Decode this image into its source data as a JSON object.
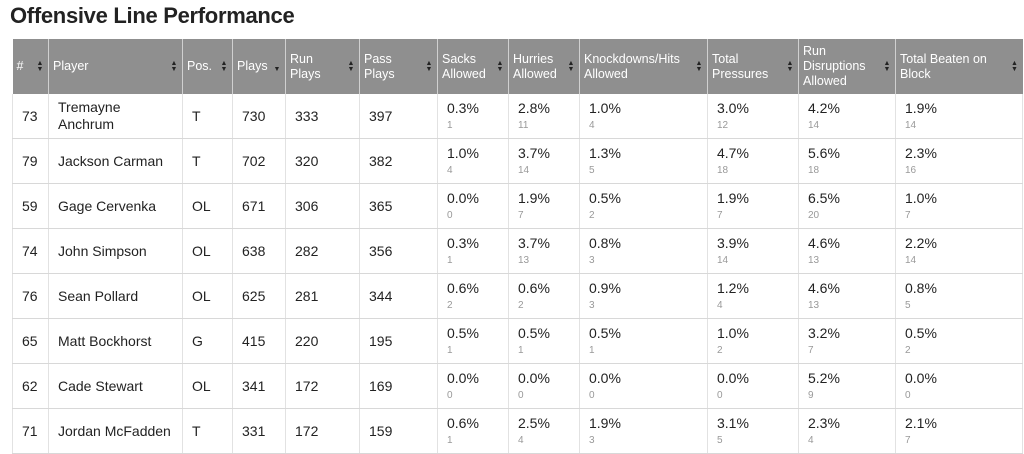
{
  "title": "Offensive Line Performance",
  "columns": [
    {
      "key": "num",
      "label": "#"
    },
    {
      "key": "player",
      "label": "Player"
    },
    {
      "key": "pos",
      "label": "Pos."
    },
    {
      "key": "plays",
      "label": "Plays"
    },
    {
      "key": "run_plays",
      "label": "Run Plays"
    },
    {
      "key": "pass_plays",
      "label": "Pass Plays"
    },
    {
      "key": "sacks",
      "label": "Sacks Allowed"
    },
    {
      "key": "hurries",
      "label": "Hurries Allowed"
    },
    {
      "key": "knockdowns",
      "label": "Knockdowns/Hits Allowed"
    },
    {
      "key": "pressures",
      "label": "Total Pressures"
    },
    {
      "key": "run_disruptions",
      "label": "Run Disruptions Allowed"
    },
    {
      "key": "beaten",
      "label": "Total Beaten on Block"
    }
  ],
  "rows": [
    {
      "num": "73",
      "player": "Tremayne Anchrum",
      "pos": "T",
      "plays": "730",
      "run_plays": "333",
      "pass_plays": "397",
      "sacks": {
        "pct": "0.3%",
        "count": "1"
      },
      "hurries": {
        "pct": "2.8%",
        "count": "11"
      },
      "knockdowns": {
        "pct": "1.0%",
        "count": "4"
      },
      "pressures": {
        "pct": "3.0%",
        "count": "12"
      },
      "run_disruptions": {
        "pct": "4.2%",
        "count": "14"
      },
      "beaten": {
        "pct": "1.9%",
        "count": "14"
      }
    },
    {
      "num": "79",
      "player": "Jackson Carman",
      "pos": "T",
      "plays": "702",
      "run_plays": "320",
      "pass_plays": "382",
      "sacks": {
        "pct": "1.0%",
        "count": "4"
      },
      "hurries": {
        "pct": "3.7%",
        "count": "14"
      },
      "knockdowns": {
        "pct": "1.3%",
        "count": "5"
      },
      "pressures": {
        "pct": "4.7%",
        "count": "18"
      },
      "run_disruptions": {
        "pct": "5.6%",
        "count": "18"
      },
      "beaten": {
        "pct": "2.3%",
        "count": "16"
      }
    },
    {
      "num": "59",
      "player": "Gage Cervenka",
      "pos": "OL",
      "plays": "671",
      "run_plays": "306",
      "pass_plays": "365",
      "sacks": {
        "pct": "0.0%",
        "count": "0"
      },
      "hurries": {
        "pct": "1.9%",
        "count": "7"
      },
      "knockdowns": {
        "pct": "0.5%",
        "count": "2"
      },
      "pressures": {
        "pct": "1.9%",
        "count": "7"
      },
      "run_disruptions": {
        "pct": "6.5%",
        "count": "20"
      },
      "beaten": {
        "pct": "1.0%",
        "count": "7"
      }
    },
    {
      "num": "74",
      "player": "John Simpson",
      "pos": "OL",
      "plays": "638",
      "run_plays": "282",
      "pass_plays": "356",
      "sacks": {
        "pct": "0.3%",
        "count": "1"
      },
      "hurries": {
        "pct": "3.7%",
        "count": "13"
      },
      "knockdowns": {
        "pct": "0.8%",
        "count": "3"
      },
      "pressures": {
        "pct": "3.9%",
        "count": "14"
      },
      "run_disruptions": {
        "pct": "4.6%",
        "count": "13"
      },
      "beaten": {
        "pct": "2.2%",
        "count": "14"
      }
    },
    {
      "num": "76",
      "player": "Sean Pollard",
      "pos": "OL",
      "plays": "625",
      "run_plays": "281",
      "pass_plays": "344",
      "sacks": {
        "pct": "0.6%",
        "count": "2"
      },
      "hurries": {
        "pct": "0.6%",
        "count": "2"
      },
      "knockdowns": {
        "pct": "0.9%",
        "count": "3"
      },
      "pressures": {
        "pct": "1.2%",
        "count": "4"
      },
      "run_disruptions": {
        "pct": "4.6%",
        "count": "13"
      },
      "beaten": {
        "pct": "0.8%",
        "count": "5"
      }
    },
    {
      "num": "65",
      "player": "Matt Bockhorst",
      "pos": "G",
      "plays": "415",
      "run_plays": "220",
      "pass_plays": "195",
      "sacks": {
        "pct": "0.5%",
        "count": "1"
      },
      "hurries": {
        "pct": "0.5%",
        "count": "1"
      },
      "knockdowns": {
        "pct": "0.5%",
        "count": "1"
      },
      "pressures": {
        "pct": "1.0%",
        "count": "2"
      },
      "run_disruptions": {
        "pct": "3.2%",
        "count": "7"
      },
      "beaten": {
        "pct": "0.5%",
        "count": "2"
      }
    },
    {
      "num": "62",
      "player": "Cade Stewart",
      "pos": "OL",
      "plays": "341",
      "run_plays": "172",
      "pass_plays": "169",
      "sacks": {
        "pct": "0.0%",
        "count": "0"
      },
      "hurries": {
        "pct": "0.0%",
        "count": "0"
      },
      "knockdowns": {
        "pct": "0.0%",
        "count": "0"
      },
      "pressures": {
        "pct": "0.0%",
        "count": "0"
      },
      "run_disruptions": {
        "pct": "5.2%",
        "count": "9"
      },
      "beaten": {
        "pct": "0.0%",
        "count": "0"
      }
    },
    {
      "num": "71",
      "player": "Jordan McFadden",
      "pos": "T",
      "plays": "331",
      "run_plays": "172",
      "pass_plays": "159",
      "sacks": {
        "pct": "0.6%",
        "count": "1"
      },
      "hurries": {
        "pct": "2.5%",
        "count": "4"
      },
      "knockdowns": {
        "pct": "1.9%",
        "count": "3"
      },
      "pressures": {
        "pct": "3.1%",
        "count": "5"
      },
      "run_disruptions": {
        "pct": "2.3%",
        "count": "4"
      },
      "beaten": {
        "pct": "2.1%",
        "count": "7"
      }
    }
  ],
  "sort": {
    "column": "plays",
    "direction": "descending"
  },
  "colors": {
    "header_bg": "#8f8f8f",
    "header_text": "#ffffff",
    "count_text": "#999999",
    "grid": "#d8d8d8"
  },
  "icons": {
    "sortable": "sort-arrows-icon",
    "sorted_desc": "sort-desc-icon"
  }
}
